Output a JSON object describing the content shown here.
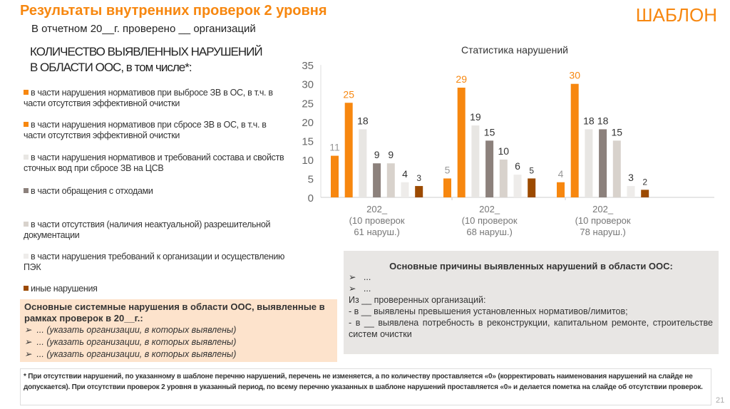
{
  "title": "Результаты внутренних проверок 2 уровня",
  "template_label": "ШАБЛОН",
  "subtitle": "В отчетном 20__г. проверено  __ организаций",
  "heading": [
    "КОЛИЧЕСТВО ВЫЯВЛЕННЫХ НАРУШЕНИЙ",
    "В ОБЛАСТИ ООС, в том числе*:"
  ],
  "legend": [
    {
      "label": "в части  нарушения нормативов при выбросе  ЗВ в ОС, в т.ч. в части отсутствия эффективной  очистки",
      "color": "#f7870f"
    },
    {
      "label": "в части  нарушения нормативов при  сбросе ЗВ в ОС, в т.ч. в части отсутствия эффективной  очистки",
      "color": "#f7870f"
    },
    {
      "label": "в части нарушения нормативов и требований состава и свойств сточных вод при сбросе ЗВ на ЦСВ",
      "color": "#e8e6e3"
    },
    {
      "label": "в части обращения с отходами",
      "color": "#8c817c"
    },
    {
      "label": "в части отсутствия (наличия неактуальной) разрешительной документации",
      "color": "#d8d2cc"
    },
    {
      "label": "в части нарушения требований  к организации и осуществлению ПЭК",
      "color": "#eeecea"
    },
    {
      "label": "иные нарушения",
      "color": "#9c4a00"
    }
  ],
  "systemic_box": {
    "title": "Основные системные нарушения в области ООС, выявленные в рамках проверок в 20__г.:",
    "items": [
      "... (указать организации, в которых выявлены)",
      "... (указать организации, в которых выявлены)",
      "... (указать организации, в которых выявлены)"
    ]
  },
  "causes_box": {
    "title": "Основные причины выявленных нарушений в области ООС:",
    "bullets": [
      "...",
      "..."
    ],
    "lines": [
      "Из __ проверенных организаций:",
      "- в __ выявлены превышения установленных нормативов/лимитов;",
      "- в __ выявлена потребность в реконструкции, капитальном ремонте, строительстве систем очистки"
    ]
  },
  "footnote": "* При отсутствии нарушений, по указанному в шаблоне перечню нарушений, перечень не изменяется, а по количеству проставляется «0» (корректировать наименования нарушений на слайде не допускается). При отсутствии проверок 2 уровня в указанный период, по всему перечню указанных в шаблоне нарушений проставляется «0» и делается пометка на слайде об отсутствии проверок.",
  "page_number": "21",
  "chart_data": {
    "type": "bar",
    "title": "Статистика нарушений",
    "ylim": [
      0,
      35
    ],
    "yticks": [
      0,
      5,
      10,
      15,
      20,
      25,
      30,
      35
    ],
    "categories": [
      "202_\n(10 проверок\n61 наруш.)",
      "202_\n(10 проверок\n68 наруш.)",
      "202_\n(10 проверок\n78 наруш.)"
    ],
    "series": [
      {
        "name": "выброс ЗВ",
        "color": "#f7870f",
        "label_color": "#999999",
        "values": [
          11,
          5,
          4
        ]
      },
      {
        "name": "сброс ЗВ",
        "color": "#f7870f",
        "label_color": "#f7870f",
        "values": [
          25,
          29,
          30
        ]
      },
      {
        "name": "ЦСВ",
        "color": "#e8e6e3",
        "label_color": "#333333",
        "values": [
          18,
          19,
          18
        ]
      },
      {
        "name": "отходы",
        "color": "#8c817c",
        "label_color": "#333333",
        "values": [
          9,
          15,
          18
        ]
      },
      {
        "name": "разрешительная документация",
        "color": "#d8d2cc",
        "label_color": "#333333",
        "values": [
          9,
          10,
          15
        ]
      },
      {
        "name": "ПЭК",
        "color": "#eeecea",
        "label_color": "#333333",
        "values": [
          4,
          6,
          3
        ]
      },
      {
        "name": "иные",
        "color": "#9c4a00",
        "label_color": "#333333",
        "values": [
          3,
          5,
          2
        ]
      }
    ]
  }
}
